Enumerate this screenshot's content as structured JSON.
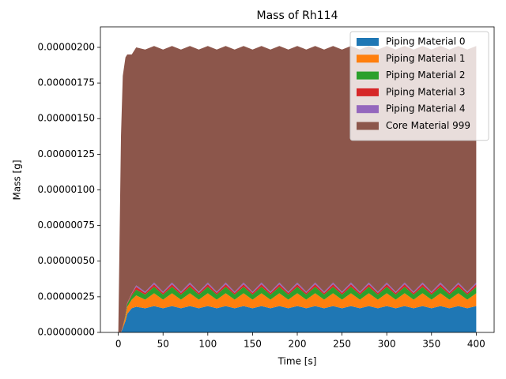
{
  "chart_data": {
    "type": "stacked_area",
    "title": "Mass of Rh114",
    "xlabel": "Time [s]",
    "ylabel": "Mass [g]",
    "x": [
      0,
      3,
      5,
      8,
      10,
      15,
      20,
      30,
      40,
      50,
      60,
      70,
      80,
      90,
      100,
      110,
      120,
      130,
      140,
      150,
      160,
      170,
      180,
      190,
      200,
      210,
      220,
      230,
      240,
      250,
      260,
      270,
      280,
      290,
      300,
      310,
      320,
      330,
      340,
      350,
      360,
      370,
      380,
      390,
      400
    ],
    "xlim": [
      -20,
      420
    ],
    "xticks": [
      0,
      50,
      100,
      150,
      200,
      250,
      300,
      350,
      400
    ],
    "ylim": [
      0,
      2.144e-06
    ],
    "yticks": [
      {
        "value": 0,
        "label": "0.00000000"
      },
      {
        "value": 2.5e-07,
        "label": "0.00000025"
      },
      {
        "value": 5e-07,
        "label": "0.00000050"
      },
      {
        "value": 7.5e-07,
        "label": "0.00000075"
      },
      {
        "value": 1e-06,
        "label": "0.00000100"
      },
      {
        "value": 1.25e-06,
        "label": "0.00000125"
      },
      {
        "value": 1.5e-06,
        "label": "0.00000150"
      },
      {
        "value": 1.75e-06,
        "label": "0.00000175"
      },
      {
        "value": 2e-06,
        "label": "0.00000200"
      }
    ],
    "legend": "upper right",
    "series": [
      {
        "name": "Piping Material 0",
        "color": "#1f77b4",
        "values": [
          0,
          0,
          3e-08,
          8e-08,
          1.3e-07,
          1.7e-07,
          1.8e-07,
          1.7e-07,
          1.85e-07,
          1.7e-07,
          1.85e-07,
          1.7e-07,
          1.85e-07,
          1.7e-07,
          1.85e-07,
          1.7e-07,
          1.85e-07,
          1.7e-07,
          1.85e-07,
          1.7e-07,
          1.85e-07,
          1.7e-07,
          1.85e-07,
          1.7e-07,
          1.85e-07,
          1.7e-07,
          1.85e-07,
          1.7e-07,
          1.85e-07,
          1.7e-07,
          1.85e-07,
          1.7e-07,
          1.85e-07,
          1.7e-07,
          1.85e-07,
          1.7e-07,
          1.85e-07,
          1.7e-07,
          1.85e-07,
          1.7e-07,
          1.85e-07,
          1.7e-07,
          1.85e-07,
          1.7e-07,
          1.85e-07
        ]
      },
      {
        "name": "Piping Material 1",
        "color": "#ff7f0e",
        "values": [
          0,
          0,
          1e-08,
          3e-08,
          5e-08,
          6e-08,
          8e-08,
          6e-08,
          9e-08,
          6e-08,
          9e-08,
          6e-08,
          9e-08,
          6e-08,
          9e-08,
          6e-08,
          9e-08,
          6e-08,
          9e-08,
          6e-08,
          9e-08,
          6e-08,
          9e-08,
          6e-08,
          9e-08,
          6e-08,
          9e-08,
          6e-08,
          9e-08,
          6e-08,
          9e-08,
          6e-08,
          9e-08,
          6e-08,
          9e-08,
          6e-08,
          9e-08,
          6e-08,
          9e-08,
          6e-08,
          9e-08,
          6e-08,
          9e-08,
          6e-08,
          9e-08
        ]
      },
      {
        "name": "Piping Material 2",
        "color": "#2ca02c",
        "values": [
          0,
          0,
          0,
          1e-08,
          2e-08,
          3e-08,
          4e-08,
          3.5e-08,
          4.5e-08,
          3.5e-08,
          4.5e-08,
          3.5e-08,
          4.5e-08,
          3.5e-08,
          4.5e-08,
          3.5e-08,
          4.5e-08,
          3.5e-08,
          4.5e-08,
          3.5e-08,
          4.5e-08,
          3.5e-08,
          4.5e-08,
          3.5e-08,
          4.5e-08,
          3.5e-08,
          4.5e-08,
          3.5e-08,
          4.5e-08,
          3.5e-08,
          4.5e-08,
          3.5e-08,
          4.5e-08,
          3.5e-08,
          4.5e-08,
          3.5e-08,
          4.5e-08,
          3.5e-08,
          4.5e-08,
          3.5e-08,
          4.5e-08,
          3.5e-08,
          4.5e-08,
          3.5e-08,
          4.5e-08
        ]
      },
      {
        "name": "Piping Material 3",
        "color": "#d62728",
        "values": [
          0,
          0,
          0,
          0,
          5e-09,
          1e-08,
          2e-08,
          1.2e-08,
          1.8e-08,
          1.2e-08,
          1.8e-08,
          1.2e-08,
          1.8e-08,
          1.2e-08,
          1.8e-08,
          1.2e-08,
          1.8e-08,
          1.2e-08,
          1.8e-08,
          1.2e-08,
          1.8e-08,
          1.2e-08,
          1.8e-08,
          1.2e-08,
          1.8e-08,
          1.2e-08,
          1.8e-08,
          1.2e-08,
          1.8e-08,
          1.2e-08,
          1.8e-08,
          1.2e-08,
          1.8e-08,
          1.2e-08,
          1.8e-08,
          1.2e-08,
          1.8e-08,
          1.2e-08,
          1.8e-08,
          1.2e-08,
          1.8e-08,
          1.2e-08,
          1.8e-08,
          1.2e-08,
          1.8e-08
        ]
      },
      {
        "name": "Piping Material 4",
        "color": "#9467bd",
        "values": [
          0,
          0,
          0,
          0,
          2e-09,
          5e-09,
          1e-08,
          8e-09,
          1.2e-08,
          8e-09,
          1.2e-08,
          8e-09,
          1.2e-08,
          8e-09,
          1.2e-08,
          8e-09,
          1.2e-08,
          8e-09,
          1.2e-08,
          8e-09,
          1.2e-08,
          8e-09,
          1.2e-08,
          8e-09,
          1.2e-08,
          8e-09,
          1.2e-08,
          8e-09,
          1.2e-08,
          8e-09,
          1.2e-08,
          8e-09,
          1.2e-08,
          8e-09,
          1.2e-08,
          8e-09,
          1.2e-08,
          8e-09,
          1.2e-08,
          8e-09,
          1.2e-08,
          8e-09,
          1.2e-08,
          8e-09,
          1.2e-08
        ]
      },
      {
        "name": "Core Material 999",
        "color": "#8c564b",
        "values": [
          0,
          1.38e-06,
          1.76e-06,
          1.81e-06,
          1.743e-06,
          1.675e-06,
          1.67e-06,
          1.7e-06,
          1.66e-06,
          1.7e-06,
          1.66e-06,
          1.7e-06,
          1.66e-06,
          1.7e-06,
          1.66e-06,
          1.7e-06,
          1.66e-06,
          1.7e-06,
          1.66e-06,
          1.7e-06,
          1.66e-06,
          1.7e-06,
          1.66e-06,
          1.7e-06,
          1.66e-06,
          1.7e-06,
          1.66e-06,
          1.7e-06,
          1.66e-06,
          1.7e-06,
          1.66e-06,
          1.7e-06,
          1.66e-06,
          1.7e-06,
          1.66e-06,
          1.7e-06,
          1.66e-06,
          1.7e-06,
          1.66e-06,
          1.7e-06,
          1.66e-06,
          1.7e-06,
          1.66e-06,
          1.7e-06,
          1.66e-06
        ]
      }
    ]
  }
}
